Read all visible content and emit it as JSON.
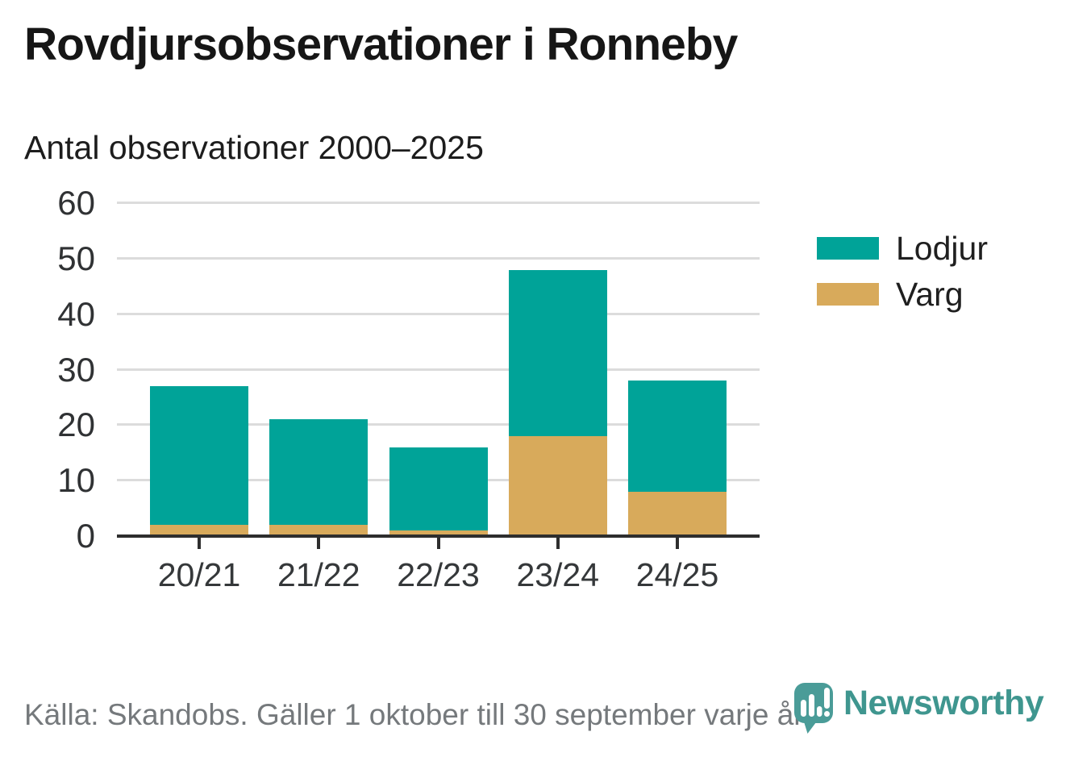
{
  "header": {
    "title": "Rovdjursobservationer i Ronneby",
    "subtitle": "Antal observationer 2000–2025"
  },
  "chart_data": {
    "type": "bar",
    "stacked": true,
    "title": "Rovdjursobservationer i Ronneby",
    "subtitle": "Antal observationer 2000–2025",
    "categories": [
      "20/21",
      "21/22",
      "22/23",
      "23/24",
      "24/25"
    ],
    "series": [
      {
        "name": "Lodjur",
        "color": "#00A398",
        "values": [
          25,
          19,
          15,
          30,
          20
        ]
      },
      {
        "name": "Varg",
        "color": "#D8AA5B",
        "values": [
          2,
          2,
          1,
          18,
          8
        ]
      }
    ],
    "stack_order_bottom_to_top": [
      "Varg",
      "Lodjur"
    ],
    "totals": [
      27,
      21,
      16,
      48,
      28
    ],
    "xlabel": "",
    "ylabel": "",
    "ylim": [
      0,
      60
    ],
    "yticks": [
      0,
      10,
      20,
      30,
      40,
      50,
      60
    ],
    "grid": true,
    "legend_position": "right"
  },
  "legend": {
    "items": [
      {
        "label": "Lodjur",
        "color": "#00A398"
      },
      {
        "label": "Varg",
        "color": "#D8AA5B"
      }
    ]
  },
  "footer": {
    "source": "Källa: Skandobs. Gäller 1 oktober till 30 september varje år.",
    "brand": "Newsworthy"
  },
  "colors": {
    "lodjur": "#00A398",
    "varg": "#D8AA5B",
    "brand_teal": "#3F968F",
    "logo_bubble": "#4A9C98",
    "grid": "#DCDCDC",
    "axis": "#2E2E2E",
    "title_text": "#161616",
    "tick_text": "#303234",
    "source_text": "#75797C"
  }
}
